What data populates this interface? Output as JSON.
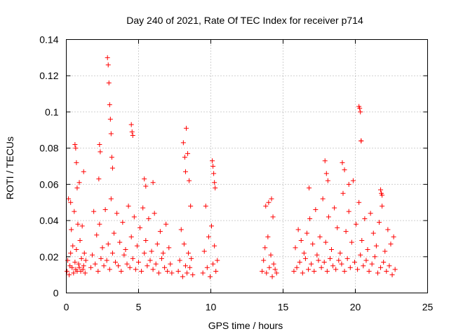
{
  "chart_data": {
    "type": "scatter",
    "title": "Day 240 of 2021, Rate Of TEC Index for receiver p714",
    "xlabel": "GPS time / hours",
    "ylabel": "ROTI / TECUs",
    "xlim": [
      0,
      25
    ],
    "ylim": [
      0,
      0.14
    ],
    "x_ticks": [
      0,
      5,
      10,
      15,
      20,
      25
    ],
    "x_tick_labels": [
      "0",
      "5",
      "10",
      "15",
      "20",
      "25"
    ],
    "y_ticks": [
      0,
      0.02,
      0.04,
      0.06,
      0.08,
      0.1,
      0.12,
      0.14
    ],
    "y_tick_labels": [
      "0",
      "0.02",
      "0.04",
      "0.06",
      "0.08",
      "0.1",
      "0.12",
      "0.14"
    ],
    "grid": true,
    "marker": "plus",
    "series": [
      {
        "name": "ROTI",
        "color": "#ff0000",
        "x": [
          0.05,
          0.1,
          0.15,
          0.2,
          0.25,
          0.3,
          0.35,
          0.4,
          0.45,
          0.5,
          0.55,
          0.6,
          0.65,
          0.7,
          0.75,
          0.8,
          0.85,
          0.9,
          0.95,
          1.0,
          1.05,
          1.1,
          1.15,
          1.2,
          1.25,
          1.3,
          1.35,
          0.3,
          0.6,
          0.65,
          0.7,
          0.75,
          0.9,
          1.2,
          1.7,
          1.8,
          1.9,
          2.0,
          2.1,
          2.2,
          2.3,
          2.4,
          2.5,
          2.6,
          2.7,
          2.8,
          2.9,
          3.0,
          3.1,
          3.2,
          3.3,
          3.4,
          3.5,
          3.6,
          3.7,
          3.8,
          3.9,
          4.0,
          4.1,
          4.2,
          4.3,
          4.4,
          4.5,
          4.6,
          4.7,
          4.8,
          4.9,
          5.0,
          5.1,
          5.2,
          5.3,
          5.4,
          5.5,
          5.6,
          5.7,
          5.8,
          5.9,
          6.0,
          6.1,
          6.2,
          6.3,
          6.4,
          6.5,
          6.6,
          6.7,
          6.8,
          6.9,
          7.0,
          7.1,
          7.2,
          7.3,
          2.25,
          2.3,
          2.35,
          2.85,
          2.9,
          2.95,
          3.0,
          3.05,
          3.1,
          3.15,
          3.2,
          4.5,
          4.55,
          4.6,
          5.4,
          5.5,
          6.0,
          7.75,
          7.85,
          7.95,
          8.05,
          8.15,
          8.25,
          8.35,
          8.45,
          8.55,
          8.65,
          8.75,
          8.1,
          8.2,
          8.25,
          8.3,
          8.4,
          8.5,
          8.6,
          9.45,
          9.55,
          9.65,
          9.75,
          9.85,
          9.95,
          10.05,
          10.15,
          10.25,
          10.35,
          10.45,
          10.1,
          10.15,
          10.2,
          10.25,
          10.3,
          13.55,
          13.65,
          13.75,
          13.85,
          13.95,
          14.05,
          14.15,
          14.25,
          14.35,
          14.45,
          14.55,
          13.8,
          14.0,
          14.2,
          14.3,
          15.75,
          15.85,
          15.95,
          16.05,
          16.15,
          16.25,
          16.35,
          16.45,
          16.55,
          16.65,
          16.75,
          16.85,
          16.95,
          17.05,
          17.15,
          17.25,
          17.35,
          17.45,
          17.55,
          17.65,
          17.75,
          17.85,
          17.95,
          18.05,
          18.15,
          18.25,
          18.35,
          18.45,
          18.55,
          18.65,
          18.75,
          18.85,
          18.95,
          19.05,
          19.15,
          19.25,
          19.35,
          19.45,
          19.55,
          19.65,
          19.75,
          19.85,
          19.95,
          20.05,
          20.15,
          20.25,
          20.35,
          20.45,
          20.55,
          20.65,
          20.75,
          20.85,
          20.95,
          21.05,
          21.15,
          21.25,
          21.35,
          21.45,
          21.55,
          21.65,
          21.75,
          21.85,
          21.95,
          22.05,
          22.15,
          22.25,
          22.35,
          22.45,
          22.55,
          22.65,
          22.75,
          16.8,
          17.9,
          18.0,
          18.1,
          19.1,
          19.25,
          19.55,
          20.25,
          20.3,
          20.35,
          20.4,
          20.4,
          21.75,
          21.8,
          21.85
        ],
        "y": [
          0.012,
          0.018,
          0.052,
          0.01,
          0.015,
          0.022,
          0.035,
          0.014,
          0.026,
          0.011,
          0.045,
          0.017,
          0.013,
          0.024,
          0.012,
          0.038,
          0.016,
          0.014,
          0.029,
          0.012,
          0.019,
          0.037,
          0.013,
          0.015,
          0.022,
          0.011,
          0.018,
          0.05,
          0.082,
          0.08,
          0.072,
          0.058,
          0.061,
          0.067,
          0.014,
          0.021,
          0.045,
          0.016,
          0.032,
          0.012,
          0.038,
          0.019,
          0.025,
          0.015,
          0.046,
          0.018,
          0.027,
          0.013,
          0.052,
          0.022,
          0.033,
          0.017,
          0.044,
          0.015,
          0.028,
          0.012,
          0.039,
          0.021,
          0.024,
          0.016,
          0.048,
          0.014,
          0.031,
          0.019,
          0.042,
          0.013,
          0.026,
          0.017,
          0.036,
          0.012,
          0.047,
          0.022,
          0.029,
          0.015,
          0.041,
          0.018,
          0.023,
          0.013,
          0.044,
          0.016,
          0.027,
          0.011,
          0.034,
          0.019,
          0.022,
          0.014,
          0.038,
          0.012,
          0.025,
          0.016,
          0.011,
          0.063,
          0.082,
          0.078,
          0.13,
          0.126,
          0.116,
          0.104,
          0.096,
          0.088,
          0.075,
          0.069,
          0.093,
          0.089,
          0.087,
          0.063,
          0.059,
          0.061,
          0.012,
          0.018,
          0.035,
          0.009,
          0.027,
          0.015,
          0.011,
          0.022,
          0.014,
          0.019,
          0.01,
          0.083,
          0.075,
          0.067,
          0.091,
          0.077,
          0.062,
          0.048,
          0.011,
          0.023,
          0.048,
          0.014,
          0.031,
          0.009,
          0.037,
          0.016,
          0.026,
          0.012,
          0.018,
          0.073,
          0.07,
          0.066,
          0.061,
          0.058,
          0.012,
          0.018,
          0.025,
          0.011,
          0.031,
          0.014,
          0.021,
          0.009,
          0.016,
          0.013,
          0.011,
          0.048,
          0.05,
          0.052,
          0.042,
          0.012,
          0.025,
          0.014,
          0.035,
          0.017,
          0.029,
          0.011,
          0.022,
          0.019,
          0.033,
          0.013,
          0.041,
          0.016,
          0.027,
          0.012,
          0.046,
          0.021,
          0.018,
          0.031,
          0.014,
          0.052,
          0.017,
          0.028,
          0.012,
          0.042,
          0.019,
          0.024,
          0.015,
          0.047,
          0.013,
          0.036,
          0.018,
          0.022,
          0.016,
          0.055,
          0.012,
          0.034,
          0.019,
          0.045,
          0.014,
          0.028,
          0.062,
          0.017,
          0.038,
          0.013,
          0.05,
          0.021,
          0.029,
          0.015,
          0.041,
          0.018,
          0.024,
          0.012,
          0.044,
          0.016,
          0.033,
          0.02,
          0.026,
          0.011,
          0.039,
          0.014,
          0.048,
          0.017,
          0.023,
          0.012,
          0.035,
          0.015,
          0.027,
          0.01,
          0.031,
          0.013,
          0.058,
          0.073,
          0.066,
          0.062,
          0.072,
          0.068,
          0.06,
          0.103,
          0.102,
          0.1,
          0.084,
          0.084,
          0.057,
          0.055,
          0.054
        ]
      }
    ]
  }
}
